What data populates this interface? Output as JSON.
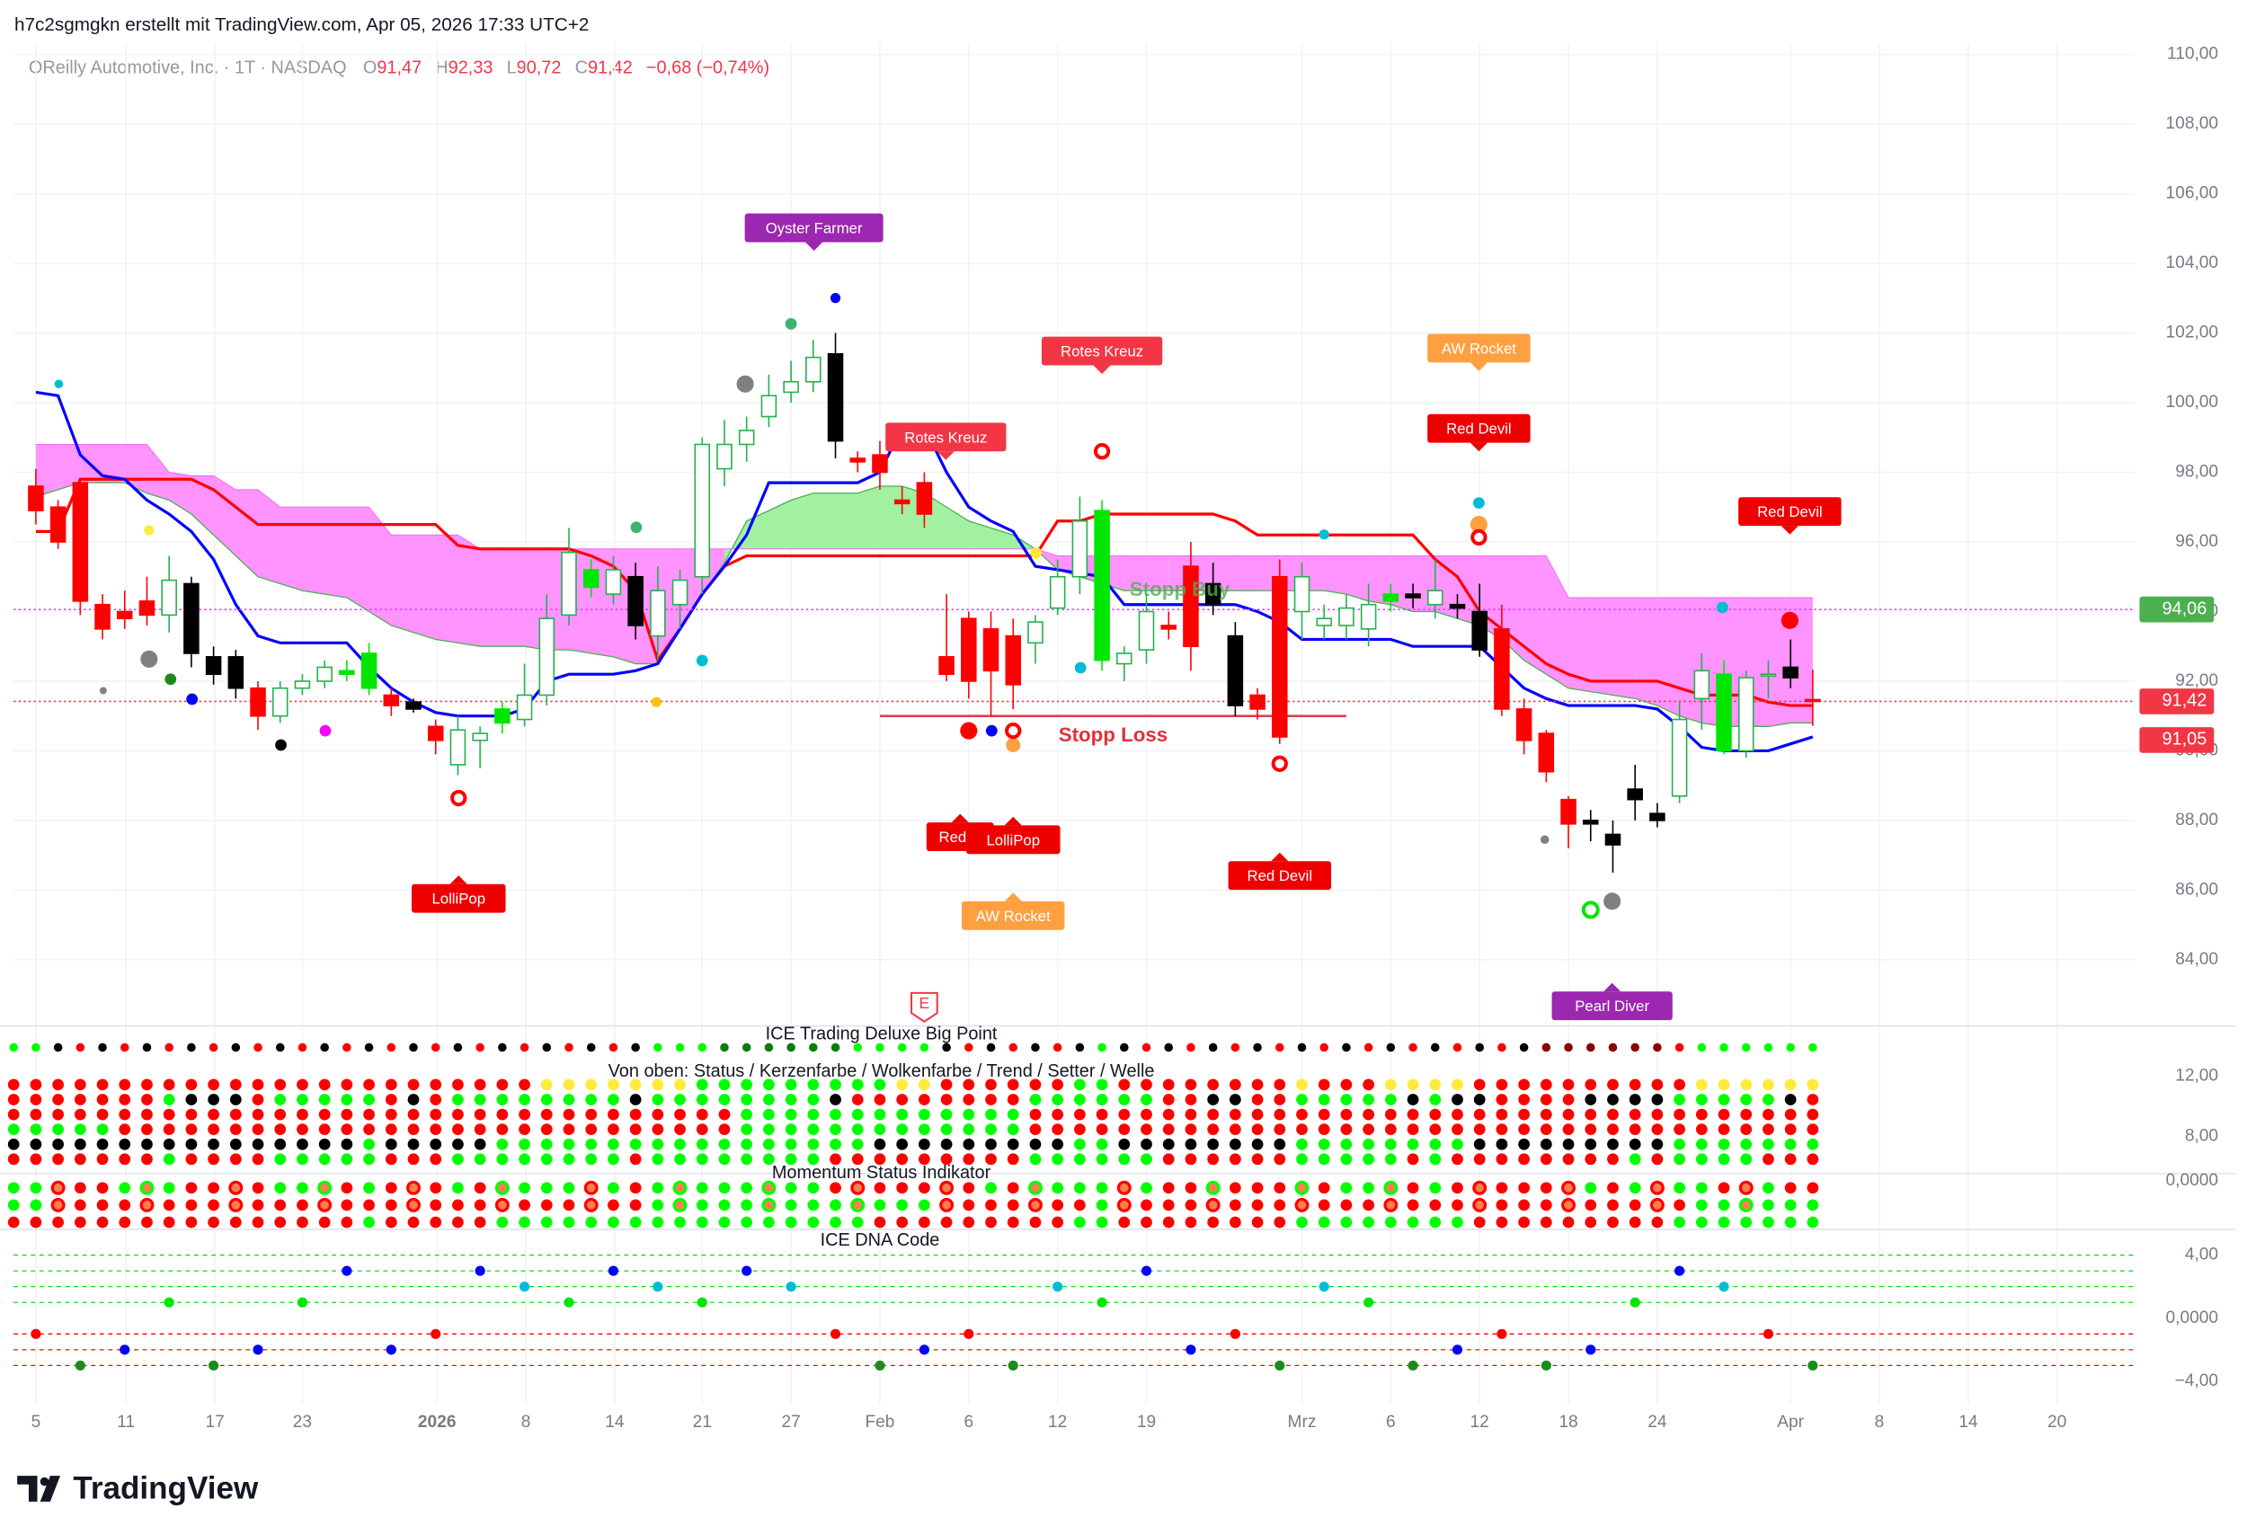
{
  "header": "h7c2sgmgkn erstellt mit TradingView.com, Apr 05, 2026 17:33 UTC+2",
  "legend": {
    "name": "OReilly Automotive, Inc. · 1T · NASDAQ",
    "items": [
      {
        "key": "O",
        "value": "91,47"
      },
      {
        "key": "H",
        "value": "92,33"
      },
      {
        "key": "L",
        "value": "90,72"
      },
      {
        "key": "C",
        "value": "91,42"
      }
    ],
    "change": "−0,68 (−0,74%)"
  },
  "footer": "TradingView",
  "earnings_marker": "E",
  "chart_data": {
    "type": "candlestick",
    "xlim": [
      -1,
      94.5
    ],
    "xticks": [
      {
        "value": 0,
        "label": "5"
      },
      {
        "value": 4.06,
        "label": "11"
      },
      {
        "value": 8.06,
        "label": "17"
      },
      {
        "value": 12,
        "label": "23"
      },
      {
        "value": 18.06,
        "label": "2026"
      },
      {
        "value": 22.06,
        "label": "8"
      },
      {
        "value": 26.06,
        "label": "14"
      },
      {
        "value": 30,
        "label": "21"
      },
      {
        "value": 34,
        "label": "27"
      },
      {
        "value": 38,
        "label": "Feb"
      },
      {
        "value": 42,
        "label": "6"
      },
      {
        "value": 46,
        "label": "12"
      },
      {
        "value": 50,
        "label": "19"
      },
      {
        "value": 57,
        "label": "Mrz"
      },
      {
        "value": 61,
        "label": "6"
      },
      {
        "value": 65,
        "label": "12"
      },
      {
        "value": 69,
        "label": "18"
      },
      {
        "value": 73,
        "label": "24"
      },
      {
        "value": 79,
        "label": "Apr"
      },
      {
        "value": 83,
        "label": "8"
      },
      {
        "value": 87,
        "label": "14"
      },
      {
        "value": 91,
        "label": "20"
      }
    ],
    "ylim": [
      82.14,
      110.33
    ],
    "yticks": [
      {
        "value": 84,
        "label": "84,00"
      },
      {
        "value": 86,
        "label": "86,00"
      },
      {
        "value": 88,
        "label": "88,00"
      },
      {
        "value": 90,
        "label": "90,00"
      },
      {
        "value": 92,
        "label": "92,00"
      },
      {
        "value": 94,
        "label": "94,00"
      },
      {
        "value": 96,
        "label": "96,00"
      },
      {
        "value": 98,
        "label": "98,00"
      },
      {
        "value": 100,
        "label": "100,00"
      },
      {
        "value": 102,
        "label": "102,00"
      },
      {
        "value": 104,
        "label": "104,00"
      },
      {
        "value": 106,
        "label": "106,00"
      },
      {
        "value": 108,
        "label": "108,00"
      },
      {
        "value": 110,
        "label": "110,00"
      }
    ],
    "grid": true,
    "x": [
      0,
      1,
      2,
      3,
      4,
      5,
      6,
      7,
      8,
      9,
      10,
      11,
      12,
      13,
      14,
      15,
      16,
      17,
      18,
      19,
      20,
      21,
      22,
      23,
      24,
      25,
      26,
      27,
      28,
      29,
      30,
      31,
      32,
      33,
      34,
      35,
      36,
      37,
      38,
      39,
      40,
      41,
      42,
      43,
      44,
      45,
      46,
      47,
      48,
      49,
      50,
      51,
      52,
      53,
      54,
      55,
      56,
      57,
      58,
      59,
      60,
      61,
      62,
      63,
      64,
      65,
      66,
      67,
      68,
      69,
      70,
      71,
      72,
      73,
      74,
      75,
      76,
      77,
      78,
      79,
      80
    ],
    "open": [
      97.6,
      97.0,
      97.7,
      94.2,
      94.0,
      94.3,
      93.9,
      94.8,
      92.7,
      92.7,
      91.8,
      91.0,
      91.8,
      92.0,
      92.2,
      91.8,
      91.6,
      91.4,
      90.7,
      89.6,
      90.3,
      90.8,
      90.9,
      91.6,
      93.9,
      94.7,
      94.5,
      95.0,
      93.3,
      94.2,
      95.0,
      98.1,
      98.8,
      99.6,
      100.3,
      100.6,
      101.4,
      98.4,
      98.5,
      97.2,
      97.7,
      92.7,
      93.8,
      93.5,
      93.3,
      93.1,
      94.1,
      95.0,
      92.6,
      92.5,
      92.9,
      93.6,
      95.3,
      94.8,
      93.3,
      91.6,
      95.0,
      94.0,
      93.6,
      93.6,
      93.5,
      94.3,
      94.5,
      94.2,
      94.2,
      94.0,
      93.5,
      91.2,
      90.5,
      88.6,
      88.0,
      87.6,
      88.6,
      88.2,
      88.7,
      91.5,
      90.0,
      90.0,
      92.2,
      92.4,
      91.47
    ],
    "high": [
      98.1,
      97.2,
      97.8,
      94.5,
      94.6,
      95.0,
      95.6,
      95.0,
      93.0,
      92.9,
      92.0,
      92.0,
      92.2,
      92.6,
      92.6,
      93.1,
      91.8,
      91.5,
      90.9,
      91.0,
      90.7,
      91.4,
      92.5,
      94.5,
      96.4,
      95.5,
      95.6,
      95.4,
      95.3,
      95.2,
      99.0,
      99.5,
      99.6,
      100.8,
      101.2,
      101.8,
      102.0,
      98.6,
      98.9,
      97.6,
      98.0,
      94.5,
      94.0,
      94.0,
      93.8,
      93.9,
      95.5,
      97.3,
      97.2,
      93.0,
      94.5,
      94.0,
      96.0,
      95.4,
      93.7,
      91.8,
      95.5,
      95.4,
      94.2,
      94.5,
      94.8,
      94.8,
      94.8,
      95.5,
      94.5,
      94.8,
      94.2,
      91.5,
      90.6,
      88.7,
      88.3,
      88.0,
      89.6,
      88.5,
      91.4,
      92.8,
      92.6,
      92.3,
      92.6,
      93.2,
      92.33
    ],
    "low": [
      96.5,
      95.8,
      93.9,
      93.2,
      93.5,
      93.6,
      93.4,
      92.4,
      91.9,
      91.5,
      90.6,
      90.8,
      91.6,
      91.8,
      92.0,
      91.6,
      91.0,
      91.1,
      89.9,
      89.3,
      89.5,
      90.5,
      90.7,
      91.3,
      93.6,
      94.4,
      94.2,
      93.2,
      92.6,
      93.5,
      94.5,
      97.6,
      98.3,
      99.3,
      100.0,
      100.3,
      98.4,
      98.0,
      97.5,
      96.8,
      96.4,
      92.0,
      91.5,
      91.0,
      91.2,
      92.5,
      93.9,
      94.5,
      92.3,
      92.0,
      92.5,
      93.2,
      92.3,
      93.9,
      91.0,
      90.9,
      90.2,
      93.2,
      93.2,
      93.2,
      93.0,
      94.0,
      94.1,
      93.8,
      93.8,
      92.7,
      91.0,
      89.9,
      89.1,
      87.2,
      87.4,
      86.5,
      88.0,
      87.8,
      88.5,
      90.6,
      89.9,
      89.8,
      91.5,
      91.8,
      90.72
    ],
    "close": [
      96.9,
      96.0,
      94.3,
      93.5,
      93.8,
      93.9,
      94.9,
      92.8,
      92.2,
      91.8,
      91.0,
      91.8,
      92.0,
      92.4,
      92.3,
      92.8,
      91.3,
      91.2,
      90.3,
      90.6,
      90.5,
      91.2,
      91.6,
      93.8,
      95.7,
      95.2,
      95.2,
      93.6,
      94.6,
      94.9,
      98.8,
      98.8,
      99.2,
      100.2,
      100.6,
      101.3,
      98.9,
      98.3,
      98.0,
      97.1,
      96.8,
      92.2,
      92.0,
      92.3,
      91.9,
      93.7,
      95.0,
      96.6,
      96.9,
      92.8,
      94.0,
      93.5,
      93.0,
      94.2,
      91.3,
      91.2,
      90.4,
      95.0,
      93.8,
      94.1,
      94.2,
      94.5,
      94.4,
      94.6,
      94.1,
      92.9,
      91.2,
      90.3,
      89.4,
      87.9,
      87.9,
      87.3,
      88.9,
      88.0,
      90.9,
      92.3,
      92.2,
      92.1,
      92.2,
      92.1,
      91.42
    ],
    "colors": [
      "#ff0000",
      "#ff0000",
      "#ff0000",
      "#ff0000",
      "#ff0000",
      "#ff0000",
      "#ffffff",
      "#000000",
      "#000000",
      "#000000",
      "#ff0000",
      "#ffffff",
      "#ffffff",
      "#ffffff",
      "#00e600",
      "#00e600",
      "#ff0000",
      "#000000",
      "#ff0000",
      "#ffffff",
      "#ffffff",
      "#00e600",
      "#ffffff",
      "#ffffff",
      "#ffffff",
      "#00e600",
      "#ffffff",
      "#000000",
      "#ffffff",
      "#ffffff",
      "#ffffff",
      "#ffffff",
      "#ffffff",
      "#ffffff",
      "#ffffff",
      "#ffffff",
      "#000000",
      "#ff0000",
      "#ff0000",
      "#ff0000",
      "#ff0000",
      "#ff0000",
      "#ff0000",
      "#ff0000",
      "#ff0000",
      "#ffffff",
      "#ffffff",
      "#ffffff",
      "#00e600",
      "#ffffff",
      "#ffffff",
      "#ff0000",
      "#ff0000",
      "#000000",
      "#000000",
      "#ff0000",
      "#ff0000",
      "#ffffff",
      "#ffffff",
      "#ffffff",
      "#ffffff",
      "#00e600",
      "#000000",
      "#ffffff",
      "#000000",
      "#000000",
      "#ff0000",
      "#ff0000",
      "#ff0000",
      "#ff0000",
      "#000000",
      "#000000",
      "#000000",
      "#000000",
      "#ffffff",
      "#ffffff",
      "#00e600",
      "#ffffff",
      "#ffffff",
      "#000000",
      "#ff0000"
    ],
    "tenkan": {
      "color": "#0000ff",
      "values": [
        100.3,
        100.2,
        98.5,
        97.9,
        97.8,
        97.2,
        96.8,
        96.3,
        95.5,
        94.2,
        93.3,
        93.1,
        93.1,
        93.1,
        93.1,
        92.4,
        91.8,
        91.4,
        91.1,
        91.0,
        91.0,
        91.0,
        91.2,
        92.0,
        92.2,
        92.2,
        92.2,
        92.3,
        92.5,
        93.5,
        94.5,
        95.3,
        96.2,
        97.7,
        97.7,
        97.7,
        97.7,
        97.7,
        98.0,
        99.3,
        99.3,
        98.0,
        97.0,
        96.6,
        96.3,
        95.3,
        95.2,
        95.1,
        95.0,
        94.2,
        94.2,
        94.2,
        94.2,
        94.2,
        94.2,
        94.0,
        93.7,
        93.2,
        93.2,
        93.2,
        93.2,
        93.2,
        93.0,
        93.0,
        93.0,
        93.0,
        92.4,
        91.8,
        91.5,
        91.3,
        91.3,
        91.3,
        91.3,
        91.2,
        90.7,
        90.1,
        90.0,
        90.0,
        90.0,
        90.2,
        90.4
      ]
    },
    "kijun": {
      "color": "#ff0000",
      "values": [
        96.3,
        96.3,
        97.8,
        97.8,
        97.8,
        97.8,
        97.8,
        97.8,
        97.5,
        97.0,
        96.5,
        96.5,
        96.5,
        96.5,
        96.5,
        96.5,
        96.5,
        96.5,
        96.5,
        95.9,
        95.8,
        95.8,
        95.8,
        95.8,
        95.8,
        95.6,
        95.3,
        94.6,
        92.6,
        93.5,
        94.5,
        95.3,
        95.6,
        95.6,
        95.6,
        95.6,
        95.6,
        95.6,
        95.6,
        95.6,
        95.6,
        95.6,
        95.6,
        95.6,
        95.6,
        95.6,
        96.6,
        96.6,
        96.8,
        96.8,
        96.8,
        96.8,
        96.8,
        96.8,
        96.6,
        96.2,
        96.2,
        96.2,
        96.2,
        96.2,
        96.2,
        96.2,
        96.2,
        95.5,
        95.0,
        94.0,
        93.5,
        93.0,
        92.5,
        92.2,
        92.0,
        92.0,
        92.0,
        92.0,
        91.8,
        91.6,
        91.6,
        91.6,
        91.4,
        91.3,
        91.3
      ]
    },
    "span_a": {
      "color": "#4caf50",
      "values": [
        97.3,
        97.5,
        97.7,
        97.7,
        97.7,
        97.4,
        97.2,
        96.8,
        96.2,
        95.6,
        95.0,
        94.8,
        94.6,
        94.5,
        94.4,
        94.0,
        93.6,
        93.4,
        93.2,
        93.1,
        93.0,
        93.0,
        93.0,
        92.9,
        92.9,
        92.8,
        92.7,
        92.5,
        92.5,
        93.5,
        94.5,
        95.4,
        96.6,
        96.9,
        97.2,
        97.4,
        97.4,
        97.4,
        97.6,
        97.6,
        97.4,
        97.0,
        96.6,
        96.4,
        96.2,
        95.8,
        95.2,
        95.0,
        94.8,
        94.6,
        94.6,
        94.6,
        94.6,
        94.6,
        94.6,
        94.6,
        94.6,
        94.6,
        94.6,
        94.5,
        94.3,
        94.2,
        94.0,
        94.0,
        93.8,
        93.6,
        93.2,
        92.6,
        92.2,
        91.8,
        91.7,
        91.6,
        91.5,
        91.3,
        91.0,
        90.8,
        90.7,
        90.7,
        90.7,
        90.8,
        90.8
      ]
    },
    "span_b": {
      "color": "#f06af0",
      "values": [
        98.8,
        98.8,
        98.8,
        98.8,
        98.8,
        98.8,
        98.0,
        97.9,
        97.9,
        97.5,
        97.5,
        97.0,
        97.0,
        97.0,
        97.0,
        97.0,
        96.2,
        96.2,
        96.2,
        96.2,
        95.8,
        95.8,
        95.8,
        95.8,
        95.8,
        95.8,
        95.8,
        95.8,
        95.8,
        95.8,
        95.8,
        95.8,
        95.8,
        95.8,
        95.8,
        95.8,
        95.8,
        95.8,
        95.8,
        95.8,
        95.8,
        95.8,
        95.8,
        95.8,
        95.8,
        95.8,
        95.6,
        95.6,
        95.6,
        95.6,
        95.6,
        95.6,
        95.6,
        95.6,
        95.6,
        95.6,
        95.6,
        95.6,
        95.6,
        95.6,
        95.6,
        95.6,
        95.6,
        95.6,
        95.6,
        95.6,
        95.6,
        95.6,
        95.6,
        94.4,
        94.4,
        94.4,
        94.4,
        94.4,
        94.4,
        94.4,
        94.4,
        94.4,
        94.4,
        94.4,
        94.4
      ]
    },
    "cloud_colors": {
      "up": "#90ee90",
      "down": "#ff80ff"
    },
    "stop_loss": {
      "label": "Stopp Loss",
      "value": 91.0,
      "from": 38,
      "to": 59,
      "color": "#e0303a"
    },
    "stop_buy": {
      "label": "Stopp Buy",
      "value": 94.6,
      "at": 51.5,
      "color": "#4caf50"
    },
    "price_tags": [
      {
        "value": 94.06,
        "label": "94,06",
        "color": "#4caf50",
        "line": "#e040fb"
      },
      {
        "value": 91.42,
        "label": "91,42",
        "color": "#f23645",
        "line": "#f23645"
      },
      {
        "value": 91.05,
        "label": "91,05",
        "color": "#f23645"
      }
    ],
    "signals": [
      {
        "text": "Oyster Farmer",
        "color": "#9c27b0"
      },
      {
        "text": "Rotes Kreuz",
        "color": "#f23645"
      },
      {
        "text": "Rotes Kreuz",
        "color": "#f23645"
      },
      {
        "text": "AW Rocket",
        "color": "#ffa040"
      },
      {
        "text": "Red Devil",
        "color": "#ee0000"
      },
      {
        "text": "Red Devil",
        "color": "#ee0000"
      },
      {
        "text": "LolliPop",
        "color": "#ee0000"
      },
      {
        "text": "Red D",
        "color": "#ee0000"
      },
      {
        "text": "LolliPop",
        "color": "#ee0000"
      },
      {
        "text": "AW Rocket",
        "color": "#ffa040"
      },
      {
        "text": "Red Devil",
        "color": "#ee0000"
      },
      {
        "text": "Pearl Diver",
        "color": "#9c27b0"
      }
    ],
    "panels": [
      {
        "title": "ICE Trading Deluxe Big Point"
      },
      {
        "title": "Von oben: Status / Kerzenfarbe / Wolkenfarbe / Trend / Setter / Welle",
        "ylim": [
          5.62,
          15.14
        ],
        "yticks": [
          {
            "value": 12,
            "label": "12,00"
          },
          {
            "value": 8,
            "label": "8,00"
          }
        ]
      },
      {
        "title": "Momentum Status Indikator",
        "ylim": [
          -4,
          0.1
        ],
        "yticks": [
          {
            "value": 0,
            "label": "0,0000"
          }
        ]
      },
      {
        "title": "ICE DNA Code",
        "ylim": [
          -5.27,
          5.45
        ],
        "yticks": [
          {
            "value": 4,
            "label": "4,00"
          },
          {
            "value": 0,
            "label": "0,0000"
          },
          {
            "value": -4,
            "label": "−4,00"
          }
        ],
        "levels": [
          4,
          3,
          2,
          1,
          -1,
          -2,
          -3
        ]
      }
    ]
  }
}
